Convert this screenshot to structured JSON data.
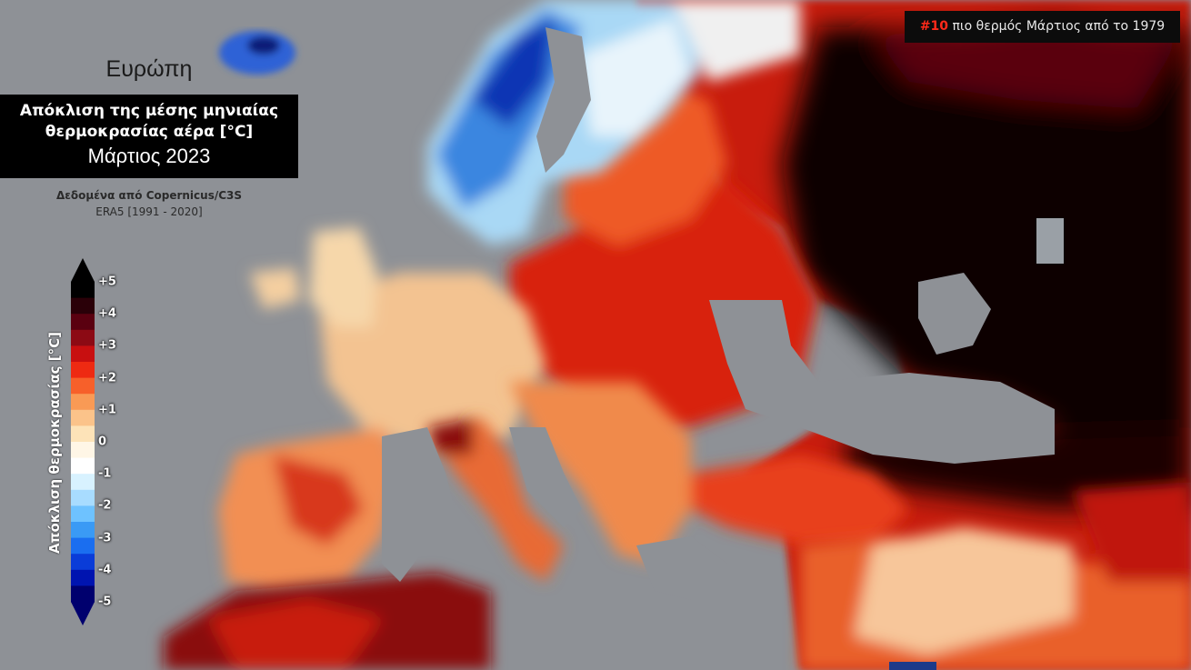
{
  "region_title": "Ευρώπη",
  "title_line1": "Απόκλιση της μέσης μηνιαίας",
  "title_line2": "θερμοκρασίας αέρα [°C]",
  "title_line3": "Μάρτιος 2023",
  "source_line1": "Δεδομένα από Copernicus/C3S",
  "source_line2": "ERA5 [1991 - 2020]",
  "rank_number": "#10",
  "rank_text": " πιο θερμός Μάρτιος από το 1979",
  "legend": {
    "title": "Απόκλιση θερμοκρασίας [°C]",
    "ticks": [
      "+5",
      "+4",
      "+3",
      "+2",
      "+1",
      "0",
      "-1",
      "-2",
      "-3",
      "-4",
      "-5"
    ],
    "colors": [
      "#000000",
      "#2a0008",
      "#5a0010",
      "#8c0a14",
      "#c80f10",
      "#ee2a12",
      "#f7602a",
      "#f99a55",
      "#fbc38a",
      "#fde3b8",
      "#fff6e6",
      "#ffffff",
      "#d8f2ff",
      "#a8dcff",
      "#6ec2ff",
      "#3a9af5",
      "#1a6ef0",
      "#0a3cd8",
      "#0014b0",
      "#00006e"
    ],
    "colors_note": "top-to-bottom color bands"
  },
  "map_colors": {
    "sea": "#8e9196",
    "hot_extreme": "#0a0000",
    "hot": "#c0140e",
    "warm": "#f07a40",
    "mild": "#f5c898",
    "cold": "#3a7ee0",
    "very_cold": "#102a90"
  }
}
